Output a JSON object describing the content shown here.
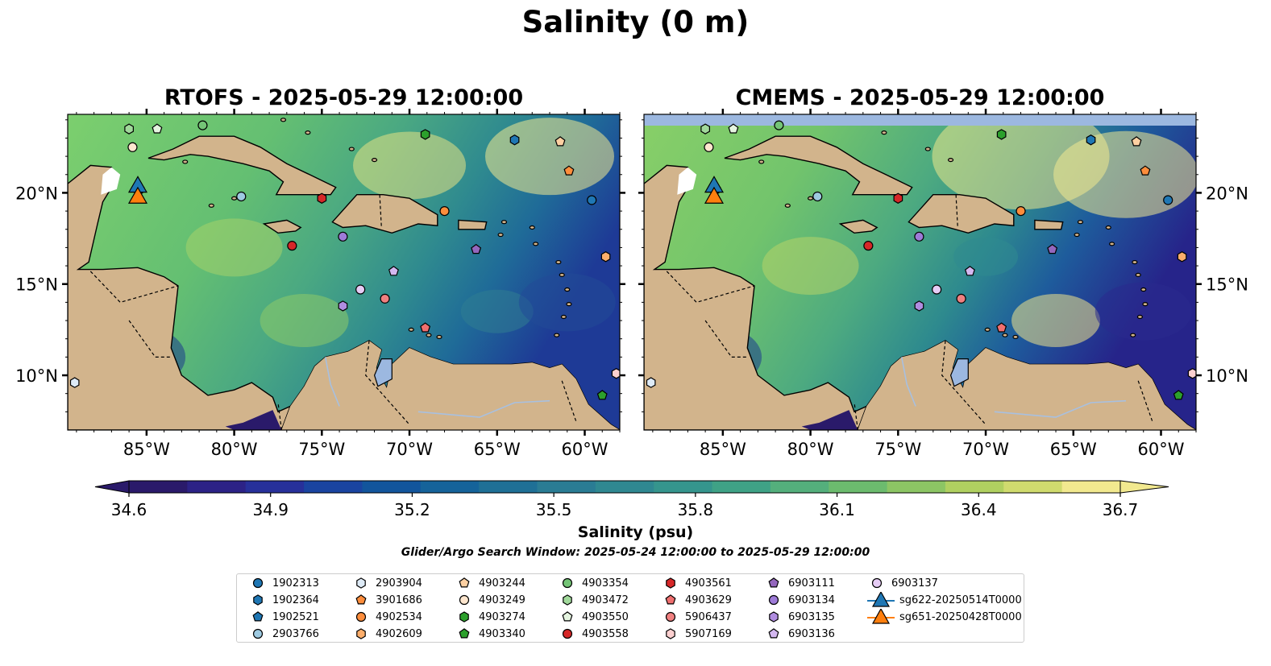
{
  "figure": {
    "title": "Salinity (0 m)",
    "panels": [
      {
        "title": "RTOFS - 2025-05-29 12:00:00",
        "missing_band": false
      },
      {
        "title": "CMEMS - 2025-05-29 12:00:00",
        "missing_band": true
      }
    ],
    "lon_ticks": [
      "85°W",
      "80°W",
      "75°W",
      "70°W",
      "65°W",
      "60°W"
    ],
    "lat_ticks": [
      "20°N",
      "15°N",
      "10°N"
    ],
    "lon_tick_values": [
      -85,
      -80,
      -75,
      -70,
      -65,
      -60
    ],
    "lat_tick_values": [
      20,
      15,
      10
    ],
    "lon_range": [
      -89.5,
      -58
    ],
    "lat_range": [
      7,
      24.3
    ],
    "colorbar": {
      "label": "Salinity (psu)",
      "ticks": [
        "34.6",
        "34.9",
        "35.2",
        "35.5",
        "35.8",
        "36.1",
        "36.4",
        "36.7"
      ],
      "range": [
        34.6,
        36.7
      ],
      "extend": "both",
      "colormap": "haline",
      "colors": [
        "#2a1a6a",
        "#2c2286",
        "#27309a",
        "#1a44a0",
        "#12559c",
        "#15639a",
        "#1f7096",
        "#2a7c94",
        "#2f8891",
        "#35958d",
        "#3fa286",
        "#54af7c",
        "#6cbb6e",
        "#8cc564",
        "#b0d060",
        "#d0db6e",
        "#f2e98f"
      ],
      "land_color": "#d2b48c",
      "missing_color": "#9cb8e0"
    },
    "search_window": "Glider/Argo Search Window: 2025-05-24 12:00:00 to 2025-05-29 12:00:00"
  },
  "chart_data": {
    "type": "scatter",
    "title": "Salinity (0 m)",
    "xlabel": "",
    "ylabel": "",
    "xlim": [
      -89.5,
      -58
    ],
    "ylim": [
      7,
      24.3
    ],
    "series": [
      {
        "name": "1902313",
        "marker": "circle",
        "color": "#1f77b4",
        "x": -59.6,
        "y": 19.6
      },
      {
        "name": "1902364",
        "marker": "hexagon",
        "color": "#1f77b4",
        "x": -64.0,
        "y": 22.9
      },
      {
        "name": "1902521",
        "marker": "pentagon",
        "color": "#1f77b4",
        "x": -85.4,
        "y": 20.2
      },
      {
        "name": "2903766",
        "marker": "circle",
        "color": "#9ecae1",
        "x": -79.6,
        "y": 19.8
      },
      {
        "name": "2903904",
        "marker": "hexagon",
        "color": "#deebf7",
        "x": -89.1,
        "y": 9.6
      },
      {
        "name": "3901686",
        "marker": "pentagon",
        "color": "#fd8d3c",
        "x": -60.9,
        "y": 21.2
      },
      {
        "name": "4902534",
        "marker": "circle",
        "color": "#fd8d3c",
        "x": -68.0,
        "y": 19.0
      },
      {
        "name": "4902609",
        "marker": "hexagon",
        "color": "#fdae6b",
        "x": -58.8,
        "y": 16.5
      },
      {
        "name": "4903244",
        "marker": "pentagon",
        "color": "#fdd0a2",
        "x": -61.4,
        "y": 22.8
      },
      {
        "name": "4903249",
        "marker": "circle",
        "color": "#fee6ce",
        "x": -85.8,
        "y": 22.5
      },
      {
        "name": "4903274",
        "marker": "hexagon",
        "color": "#2ca02c",
        "x": -69.1,
        "y": 23.2
      },
      {
        "name": "4903340",
        "marker": "pentagon",
        "color": "#2ca02c",
        "x": -59.0,
        "y": 8.9
      },
      {
        "name": "4903354",
        "marker": "circle",
        "color": "#74c476",
        "x": -81.8,
        "y": 23.7
      },
      {
        "name": "4903472",
        "marker": "hexagon",
        "color": "#a1d99b",
        "x": -86.0,
        "y": 23.5
      },
      {
        "name": "4903550",
        "marker": "pentagon",
        "color": "#e5f5e0",
        "x": -84.4,
        "y": 23.5
      },
      {
        "name": "4903558",
        "marker": "circle",
        "color": "#d62728",
        "x": -76.7,
        "y": 17.1
      },
      {
        "name": "4903561",
        "marker": "hexagon",
        "color": "#d62728",
        "x": -75.0,
        "y": 19.7
      },
      {
        "name": "4903629",
        "marker": "pentagon",
        "color": "#ef6f6f",
        "x": -69.1,
        "y": 12.6
      },
      {
        "name": "5906437",
        "marker": "circle",
        "color": "#f08080",
        "x": -71.4,
        "y": 14.2
      },
      {
        "name": "5907169",
        "marker": "hexagon",
        "color": "#fcd0d0",
        "x": -58.2,
        "y": 10.1
      },
      {
        "name": "6903111",
        "marker": "pentagon",
        "color": "#9467bd",
        "x": -66.2,
        "y": 16.9
      },
      {
        "name": "6903134",
        "marker": "circle",
        "color": "#9e7bd8",
        "x": -73.8,
        "y": 17.6
      },
      {
        "name": "6903135",
        "marker": "hexagon",
        "color": "#b08de0",
        "x": -73.8,
        "y": 13.8
      },
      {
        "name": "6903136",
        "marker": "pentagon",
        "color": "#d4b8f0",
        "x": -70.9,
        "y": 15.7
      },
      {
        "name": "6903137",
        "marker": "circle",
        "color": "#e6ccf5",
        "x": -72.8,
        "y": 14.7
      },
      {
        "name": "sg622-20250514T0000",
        "marker": "triangle",
        "color": "#1f77b4",
        "x": -85.5,
        "y": 20.4
      },
      {
        "name": "sg651-20250428T0000",
        "marker": "triangle",
        "color": "#ff7f0e",
        "x": -85.5,
        "y": 19.8
      }
    ]
  }
}
